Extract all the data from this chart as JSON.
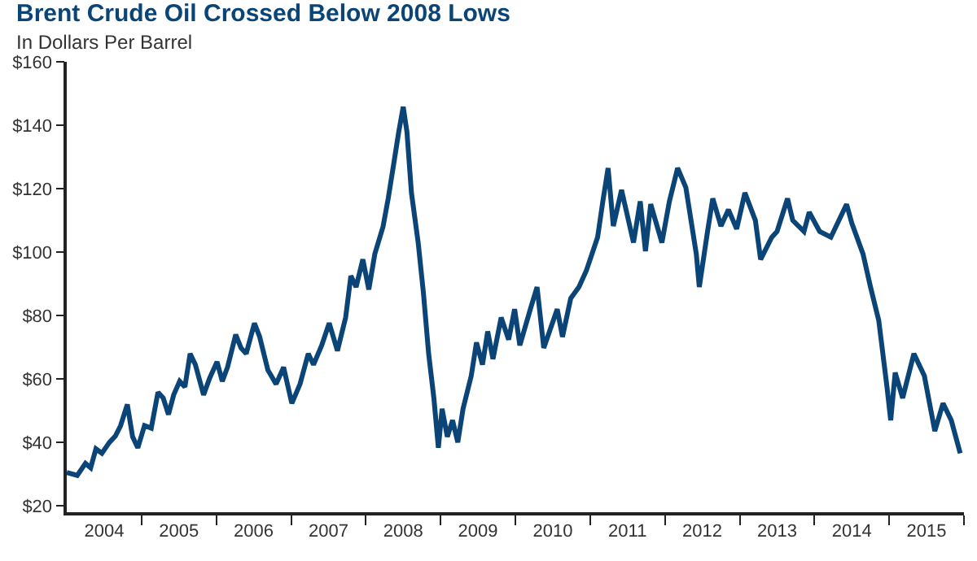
{
  "chart_data": {
    "type": "line",
    "title": "Brent Crude Oil Crossed Below 2008 Lows",
    "subtitle": "In Dollars Per Barrel",
    "x": [
      2004.0,
      2004.14,
      2004.25,
      2004.32,
      2004.39,
      2004.47,
      2004.57,
      2004.65,
      2004.72,
      2004.81,
      2004.88,
      2004.95,
      2005.04,
      2005.13,
      2005.22,
      2005.29,
      2005.36,
      2005.43,
      2005.51,
      2005.58,
      2005.65,
      2005.72,
      2005.83,
      2005.91,
      2006.01,
      2006.08,
      2006.15,
      2006.26,
      2006.33,
      2006.4,
      2006.51,
      2006.58,
      2006.69,
      2006.8,
      2006.9,
      2007.01,
      2007.12,
      2007.23,
      2007.3,
      2007.41,
      2007.51,
      2007.62,
      2007.73,
      2007.8,
      2007.87,
      2007.96,
      2008.04,
      2008.12,
      2008.23,
      2008.3,
      2008.37,
      2008.44,
      2008.5,
      2008.55,
      2008.61,
      2008.7,
      2008.77,
      2008.84,
      2008.91,
      2008.97,
      2009.02,
      2009.09,
      2009.16,
      2009.23,
      2009.3,
      2009.41,
      2009.48,
      2009.56,
      2009.63,
      2009.7,
      2009.81,
      2009.91,
      2009.99,
      2010.06,
      2010.2,
      2010.29,
      2010.38,
      2010.56,
      2010.63,
      2010.74,
      2010.85,
      2010.95,
      2011.1,
      2011.17,
      2011.24,
      2011.31,
      2011.42,
      2011.58,
      2011.67,
      2011.74,
      2011.81,
      2011.96,
      2012.06,
      2012.17,
      2012.28,
      2012.42,
      2012.46,
      2012.57,
      2012.64,
      2012.75,
      2012.85,
      2012.96,
      2013.07,
      2013.21,
      2013.28,
      2013.43,
      2013.5,
      2013.64,
      2013.71,
      2013.86,
      2013.93,
      2014.07,
      2014.22,
      2014.43,
      2014.5,
      2014.65,
      2014.75,
      2014.86,
      2014.97,
      2015.02,
      2015.08,
      2015.18,
      2015.33,
      2015.47,
      2015.61,
      2015.72,
      2015.83,
      2015.95
    ],
    "series": [
      {
        "color": "#0b4476",
        "values": [
          30.5,
          29.6,
          33.4,
          32,
          38,
          36.6,
          40,
          42,
          45.3,
          52,
          41.8,
          38.3,
          45.3,
          44.5,
          55.8,
          54,
          48.8,
          55,
          59.3,
          57.5,
          68,
          64.5,
          55,
          60.2,
          65.4,
          59.3,
          63.7,
          74,
          69.8,
          68,
          77.6,
          73.3,
          62.8,
          58.4,
          63.7,
          52.3,
          58.4,
          68,
          64.5,
          70.6,
          77.6,
          68.9,
          79.4,
          92.5,
          89,
          97.7,
          88.2,
          99.4,
          108,
          117,
          127.4,
          137.9,
          145.8,
          137.9,
          118.7,
          103,
          87.2,
          68,
          54,
          38.3,
          50.6,
          41.8,
          47,
          40,
          50.6,
          61,
          71.5,
          64.5,
          75,
          66.3,
          79.4,
          72.4,
          82,
          70.6,
          82,
          89,
          69.8,
          82,
          73.3,
          85.4,
          89,
          94.2,
          104.7,
          116,
          126.5,
          108.2,
          119.6,
          103,
          116,
          100.3,
          115.1,
          103,
          116,
          126.5,
          120.4,
          99.4,
          89,
          106.5,
          116.9,
          108.2,
          113.4,
          107.3,
          118.7,
          110,
          97.7,
          104.7,
          106.5,
          116.9,
          110,
          106.5,
          112.6,
          106.5,
          104.7,
          115.1,
          109.1,
          99.4,
          89,
          78.5,
          57.5,
          47,
          62,
          54,
          68,
          61,
          43.6,
          52.3,
          47,
          36.6
        ]
      }
    ],
    "xlim": [
      2004,
      2016
    ],
    "xticks": [
      {
        "value": 2004.5,
        "label": "2004"
      },
      {
        "value": 2005,
        "label": null
      },
      {
        "value": 2005.5,
        "label": "2005"
      },
      {
        "value": 2006,
        "label": null
      },
      {
        "value": 2006.5,
        "label": "2006"
      },
      {
        "value": 2007,
        "label": null
      },
      {
        "value": 2007.5,
        "label": "2007"
      },
      {
        "value": 2008,
        "label": null
      },
      {
        "value": 2008.5,
        "label": "2008"
      },
      {
        "value": 2009,
        "label": null
      },
      {
        "value": 2009.5,
        "label": "2009"
      },
      {
        "value": 2010,
        "label": null
      },
      {
        "value": 2010.5,
        "label": "2010"
      },
      {
        "value": 2011,
        "label": null
      },
      {
        "value": 2011.5,
        "label": "2011"
      },
      {
        "value": 2012,
        "label": null
      },
      {
        "value": 2012.5,
        "label": "2012"
      },
      {
        "value": 2013,
        "label": null
      },
      {
        "value": 2013.5,
        "label": "2013"
      },
      {
        "value": 2014,
        "label": null
      },
      {
        "value": 2014.5,
        "label": "2014"
      },
      {
        "value": 2015,
        "label": null
      },
      {
        "value": 2015.5,
        "label": "2015"
      },
      {
        "value": 2016,
        "label": null
      }
    ],
    "ylim": [
      18,
      160
    ],
    "yticks": [
      {
        "value": 20,
        "label": "$20"
      },
      {
        "value": 40,
        "label": "$40"
      },
      {
        "value": 60,
        "label": "$60"
      },
      {
        "value": 80,
        "label": "$80"
      },
      {
        "value": 100,
        "label": "$100"
      },
      {
        "value": 120,
        "label": "$120"
      },
      {
        "value": 140,
        "label": "$140"
      },
      {
        "value": 160,
        "label": "$160"
      }
    ],
    "marker": "none",
    "line_style": "solid"
  }
}
